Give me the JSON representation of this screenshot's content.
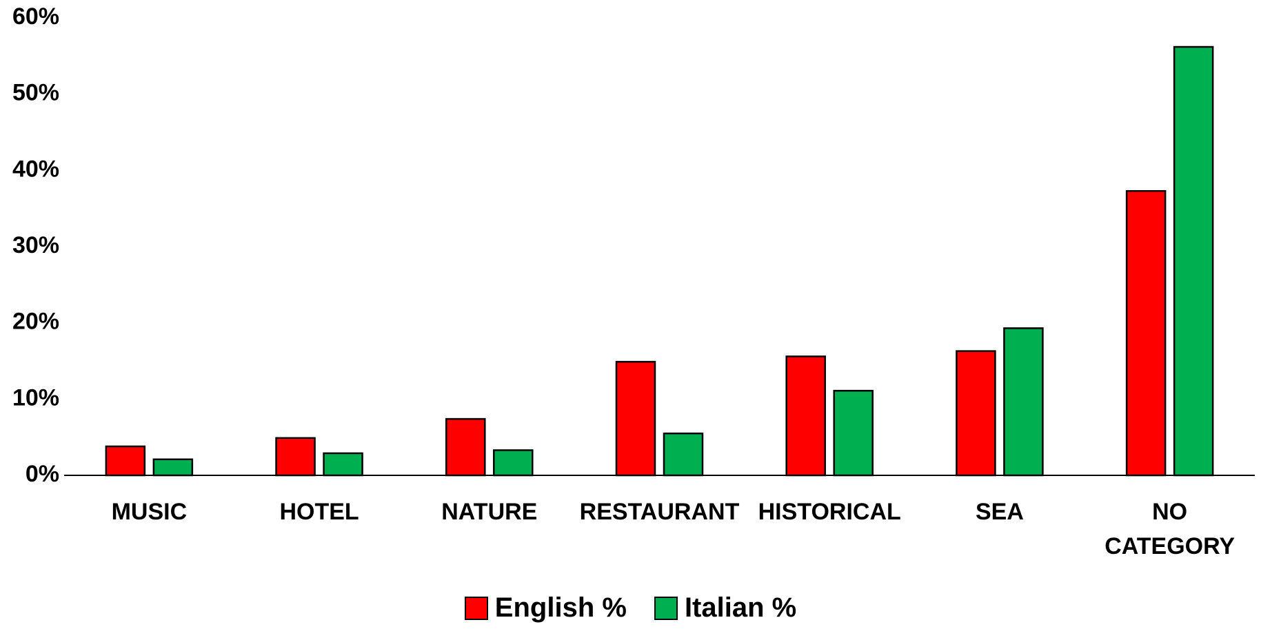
{
  "chart_data": {
    "type": "bar",
    "categories": [
      "MUSIC",
      "HOTEL",
      "NATURE",
      "RESTAURANT",
      "HISTORICAL",
      "SEA",
      "NO CATEGORY"
    ],
    "series": [
      {
        "name": "English %",
        "color": "#ff0000",
        "values": [
          3.8,
          4.9,
          7.4,
          14.9,
          15.6,
          16.3,
          37.3
        ]
      },
      {
        "name": "Italian %",
        "color": "#00b050",
        "values": [
          2.1,
          2.9,
          3.3,
          5.5,
          11.1,
          19.3,
          56.2
        ]
      }
    ],
    "ylim": [
      0,
      60
    ],
    "yticks": [
      {
        "value": 0,
        "label": "0%"
      },
      {
        "value": 10,
        "label": "10%"
      },
      {
        "value": 20,
        "label": "20%"
      },
      {
        "value": 30,
        "label": "30%"
      },
      {
        "value": 40,
        "label": "40%"
      },
      {
        "value": 50,
        "label": "50%"
      },
      {
        "value": 60,
        "label": "60%"
      }
    ],
    "legend": "bottom"
  }
}
